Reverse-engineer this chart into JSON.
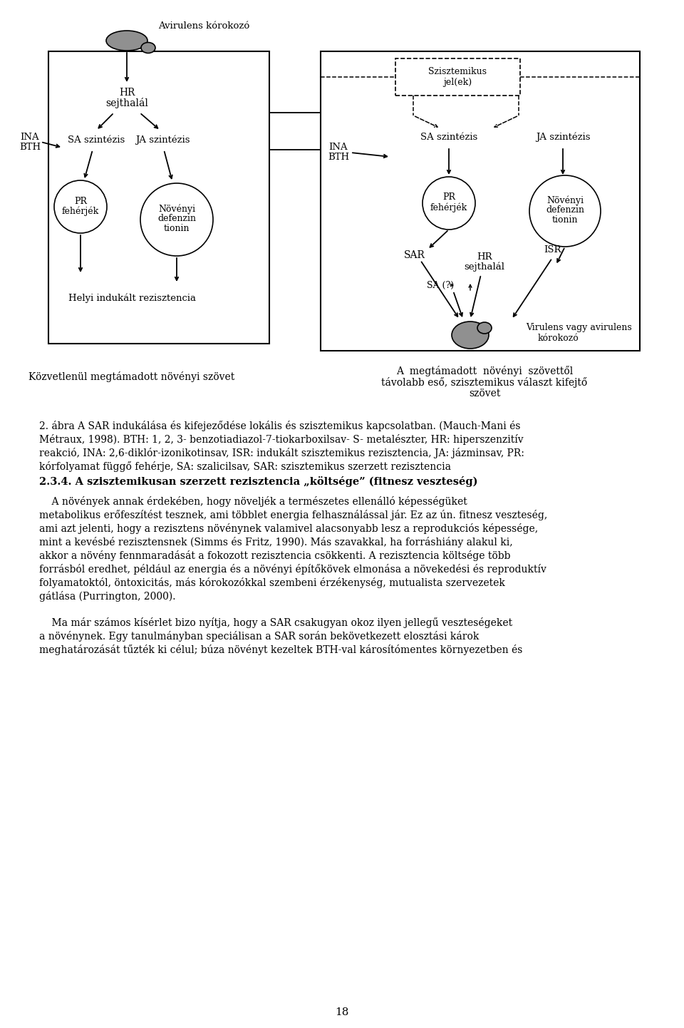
{
  "bg_color": "#ffffff",
  "text_color": "#000000",
  "ellipse_fill": "#909090",
  "circle_fill": "#ffffff",
  "left_caption": "Közvetlenül megtámadott növényi szövet",
  "right_caption_1": "A  megtámadott  növényi  szövettől",
  "right_caption_2": "távolabb eső, szisztemikus választ kifejtő",
  "right_caption_3": "szövet",
  "fig_cap_1": "2. ábra A SAR indukálása és kifejeződése lokális és szisztemikus kapcsolatban. (Mauch-Mani és",
  "fig_cap_2": "Métraux, 1998). BTH: 1, 2, 3- benzotiadiazol-7-tiokarboxilsav- S- metalészter, HR: hiperszenzitív",
  "fig_cap_3": "reakció, INA: 2,6-diklór-izonikotinsav, ISR: indukált szisztemikus rezisztencia, JA: jázminsav, PR:",
  "fig_cap_4": "kórfolyamat függő fehérje, SA: szalicilsav, SAR: szisztemikus szerzett rezisztencia",
  "sec_title_1": "2.3.4. A szisztemikusan szerzett rezisztencia ",
  "sec_title_2": "költsége",
  "sec_title_3": " (fitnesz veszteség)",
  "p1_l1": "    A növények annak érdekében, hogy növeljék a természetes ellenálló képességüket",
  "p1_l2": "metabolikus erőfeszítést tesznek, ami többlet energia felhasználással jár. Ez az ún. fitnesz veszteség,",
  "p1_l3": "ami azt jelenti, hogy a rezisztens növénynek valamivel alacsonyabb lesz a reprodukciós képessége,",
  "p1_l4": "mint a kevésbé rezisztensnek (Simms és Fritz, 1990). Más szavakkal, ha forráshiány alakul ki,",
  "p1_l5": "akkor a növény fennmaradását a fokozott rezisztencia csökkenti. A rezisztencia költsége több",
  "p1_l6": "forrásból eredhet, például az energia és a növényi építőkövek elmonása a növekedési és reproduktív",
  "p1_l7": "folyamatoktól, öntoxicitás, más kórokozókkal szembeni érzékenység, mutualista szervezetek",
  "p1_l8": "gátlása (Purrington, 2000).",
  "p2_l1": "    Ma már számos kísérlet bizo nyítja, hogy a SAR csakugyan okoz ilyen jellegű veszteségeket",
  "p2_l2": "a növénynek. Egy tanulmányban speciálisan a SAR során bekövetkezett elosztási károk",
  "p2_l3": "meghatározását tűzték ki célul; búza növényt kezeltek BTH-val károsítómentes környezetben és",
  "page_number": "18"
}
